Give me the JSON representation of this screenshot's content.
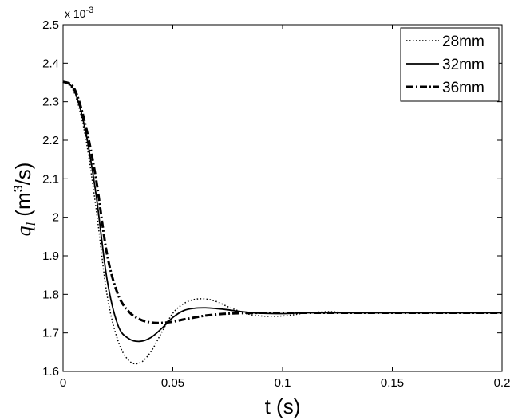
{
  "chart_data": {
    "type": "line",
    "title": "",
    "xlabel": "t (s)",
    "ylabel": {
      "var": "q",
      "sub": "l",
      "unit_pre": " (m",
      "unit_sup": "3",
      "unit_post": "/s)"
    },
    "y_multiplier": {
      "base": "x 10",
      "exp": "-3"
    },
    "xlim": [
      0,
      0.2
    ],
    "ylim": [
      1.6,
      2.5
    ],
    "xticks": [
      0,
      0.05,
      0.1,
      0.15,
      0.2
    ],
    "xtick_labels": [
      "0",
      "0.05",
      "0.1",
      "0.15",
      "0.2"
    ],
    "yticks": [
      1.6,
      1.7,
      1.8,
      1.9,
      2.0,
      2.1,
      2.2,
      2.3,
      2.4,
      2.5
    ],
    "ytick_labels": [
      "1.6",
      "1.7",
      "1.8",
      "1.9",
      "2",
      "2.1",
      "2.2",
      "2.3",
      "2.4",
      "2.5"
    ],
    "grid": false,
    "legend_position": "top-right",
    "series": [
      {
        "name": "28mm",
        "style": "dotted",
        "x": [
          0,
          0.005,
          0.01,
          0.015,
          0.02,
          0.025,
          0.03,
          0.035,
          0.04,
          0.045,
          0.05,
          0.055,
          0.06,
          0.065,
          0.07,
          0.075,
          0.08,
          0.085,
          0.09,
          0.095,
          0.1,
          0.105,
          0.11,
          0.12,
          0.13,
          0.15,
          0.2
        ],
        "y": [
          2.352,
          2.325,
          2.215,
          2.025,
          1.8,
          1.68,
          1.628,
          1.622,
          1.651,
          1.702,
          1.751,
          1.776,
          1.787,
          1.788,
          1.781,
          1.768,
          1.757,
          1.748,
          1.744,
          1.743,
          1.744,
          1.747,
          1.751,
          1.755,
          1.753,
          1.752,
          1.752
        ]
      },
      {
        "name": "32mm",
        "style": "solid",
        "x": [
          0,
          0.005,
          0.01,
          0.015,
          0.02,
          0.025,
          0.03,
          0.035,
          0.04,
          0.045,
          0.05,
          0.055,
          0.06,
          0.065,
          0.07,
          0.075,
          0.08,
          0.085,
          0.09,
          0.1,
          0.11,
          0.12,
          0.15,
          0.2
        ],
        "y": [
          2.352,
          2.33,
          2.23,
          2.06,
          1.84,
          1.72,
          1.685,
          1.678,
          1.688,
          1.712,
          1.74,
          1.758,
          1.764,
          1.765,
          1.763,
          1.76,
          1.756,
          1.753,
          1.751,
          1.75,
          1.752,
          1.752,
          1.752,
          1.752
        ]
      },
      {
        "name": "36mm",
        "style": "dashdot",
        "x": [
          0,
          0.005,
          0.01,
          0.015,
          0.02,
          0.025,
          0.03,
          0.035,
          0.04,
          0.045,
          0.05,
          0.055,
          0.06,
          0.065,
          0.07,
          0.075,
          0.08,
          0.09,
          0.1,
          0.12,
          0.15,
          0.2
        ],
        "y": [
          2.352,
          2.335,
          2.245,
          2.1,
          1.905,
          1.8,
          1.755,
          1.735,
          1.727,
          1.726,
          1.729,
          1.735,
          1.74,
          1.745,
          1.748,
          1.75,
          1.751,
          1.752,
          1.752,
          1.752,
          1.752,
          1.752
        ]
      }
    ]
  }
}
